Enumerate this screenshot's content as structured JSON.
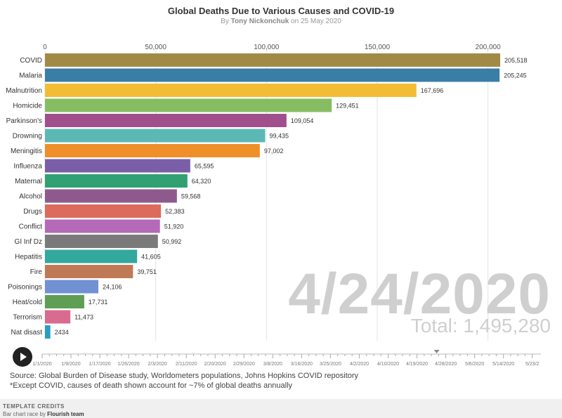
{
  "header": {
    "title": "Global Deaths Due to Various Causes and COVID-19",
    "byline_prefix": "By",
    "author": "Tony Nickonchuk",
    "byline_suffix": "on 25 May 2020"
  },
  "chart_data": {
    "type": "bar",
    "orientation": "horizontal",
    "categories": [
      "COVID",
      "Malaria",
      "Malnutrition",
      "Homicide",
      "Parkinson's",
      "Drowning",
      "Meningitis",
      "Influenza",
      "Maternal",
      "Alcohol",
      "Drugs",
      "Conflict",
      "GI Inf Dz",
      "Hepatitis",
      "Fire",
      "Poisonings",
      "Heat/cold",
      "Terrorism",
      "Nat disast"
    ],
    "values": [
      205518,
      205245,
      167696,
      129451,
      109054,
      99435,
      97002,
      65595,
      64320,
      59568,
      52383,
      51920,
      50992,
      41605,
      39751,
      24106,
      17731,
      11473,
      2434
    ],
    "value_labels": [
      "205,518",
      "205,245",
      "167,696",
      "129,451",
      "109,054",
      "99,435",
      "97,002",
      "65,595",
      "64,320",
      "59,568",
      "52,383",
      "51,920",
      "50,992",
      "41,605",
      "39,751",
      "24,106",
      "17,731",
      "11,473",
      "2434"
    ],
    "colors": [
      "#a08a46",
      "#3a7ea8",
      "#f2bc34",
      "#86bd62",
      "#a04f8c",
      "#5cb8b4",
      "#ef8f2a",
      "#7b5ea8",
      "#31a072",
      "#8e5a8e",
      "#dc6b5c",
      "#b56ab7",
      "#7a7a7a",
      "#33a89e",
      "#bf7a55",
      "#7191d3",
      "#5e9e55",
      "#d86b8f",
      "#2a9dc2"
    ],
    "xlim": [
      0,
      205518
    ],
    "xticks": [
      0,
      50000,
      100000,
      150000,
      200000
    ],
    "xtick_labels": [
      "0",
      "50,000",
      "100,000",
      "150,000",
      "200,000"
    ],
    "grid": true,
    "xlabel": "",
    "ylabel": ""
  },
  "overlay": {
    "date": "4/24/2020",
    "total": "Total: 1,495,280"
  },
  "timeline": {
    "labels": [
      "1/1/2020",
      "1/9/2020",
      "1/17/2020",
      "1/26/2020",
      "2/3/2020",
      "2/11/2020",
      "2/20/2020",
      "2/29/2020",
      "3/8/2020",
      "3/16/2020",
      "3/25/2020",
      "4/2/2020",
      "4/10/2020",
      "4/19/2020",
      "4/28/2020",
      "5/6/2020",
      "5/14/2020",
      "5/23/2"
    ],
    "position": 0.791
  },
  "footer": {
    "source": "Source: Global Burden of Disease study, Worldometers populations, Johns Hopkins COVID repository",
    "note": "*Except COVID, causes of death shown account for ~7% of global deaths annually"
  },
  "credits": {
    "heading": "TEMPLATE CREDITS",
    "text": "Bar chart race by",
    "team": "Flourish team"
  }
}
